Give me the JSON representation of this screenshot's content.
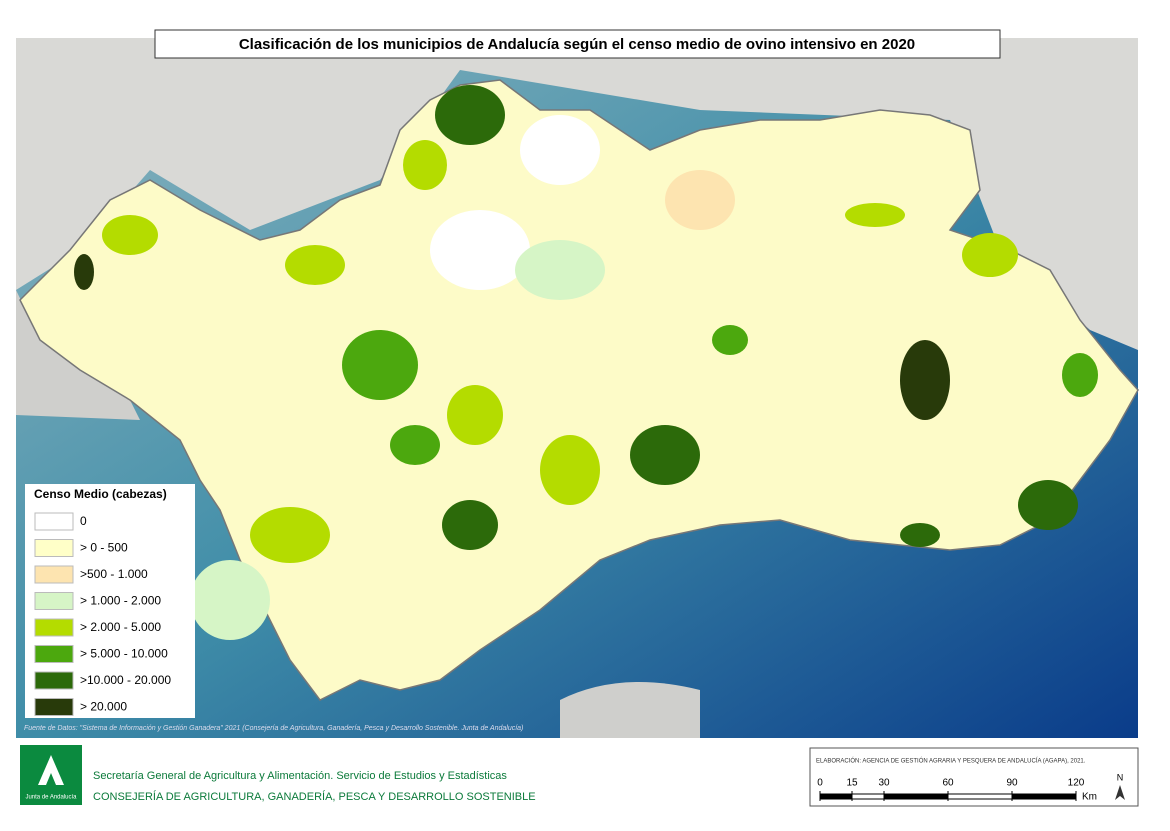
{
  "header": {
    "title": "Clasificación de los municipios de Andalucía según el censo medio de ovino intensivo en 2020"
  },
  "legend": {
    "title": "Censo Medio (cabezas)",
    "items": [
      {
        "label": "0",
        "color": "#ffffff"
      },
      {
        "label": "> 0 - 500",
        "color": "#ffffc8"
      },
      {
        "label": ">500 - 1.000",
        "color": "#fde4b0"
      },
      {
        "label": "> 1.000 - 2.000",
        "color": "#d6f5c6"
      },
      {
        "label": "> 2.000 - 5.000",
        "color": "#b4dc00"
      },
      {
        "label": "> 5.000 - 10.000",
        "color": "#4ca80e"
      },
      {
        "label": ">10.000 - 20.000",
        "color": "#2c6a0a"
      },
      {
        "label": "> 20.000",
        "color": "#283a0a"
      }
    ]
  },
  "source": "Fuente de Datos: \"Sistema de Información y Gestión Ganadera\" 2021 (Consejería de Agricultura, Ganadería, Pesca y Desarrollo Sostenible. Junta de Andalucía)",
  "footer": {
    "logo": "Junta de Andalucía",
    "line1": "Secretaría General de Agricultura y Alimentación. Servicio de Estudios y Estadísticas",
    "line2": "CONSEJERÍA DE AGRICULTURA, GANADERÍA, PESCA Y DESARROLLO SOSTENIBLE",
    "credit": "ELABORACIÓN: AGENCIA DE GESTIÓN AGRARIA Y PESQUERA DE ANDALUCÍA (AGAPA), 2021.",
    "scale": {
      "ticks": [
        0,
        15,
        30,
        60,
        90,
        120
      ],
      "unit": "Km",
      "north": "N"
    }
  }
}
